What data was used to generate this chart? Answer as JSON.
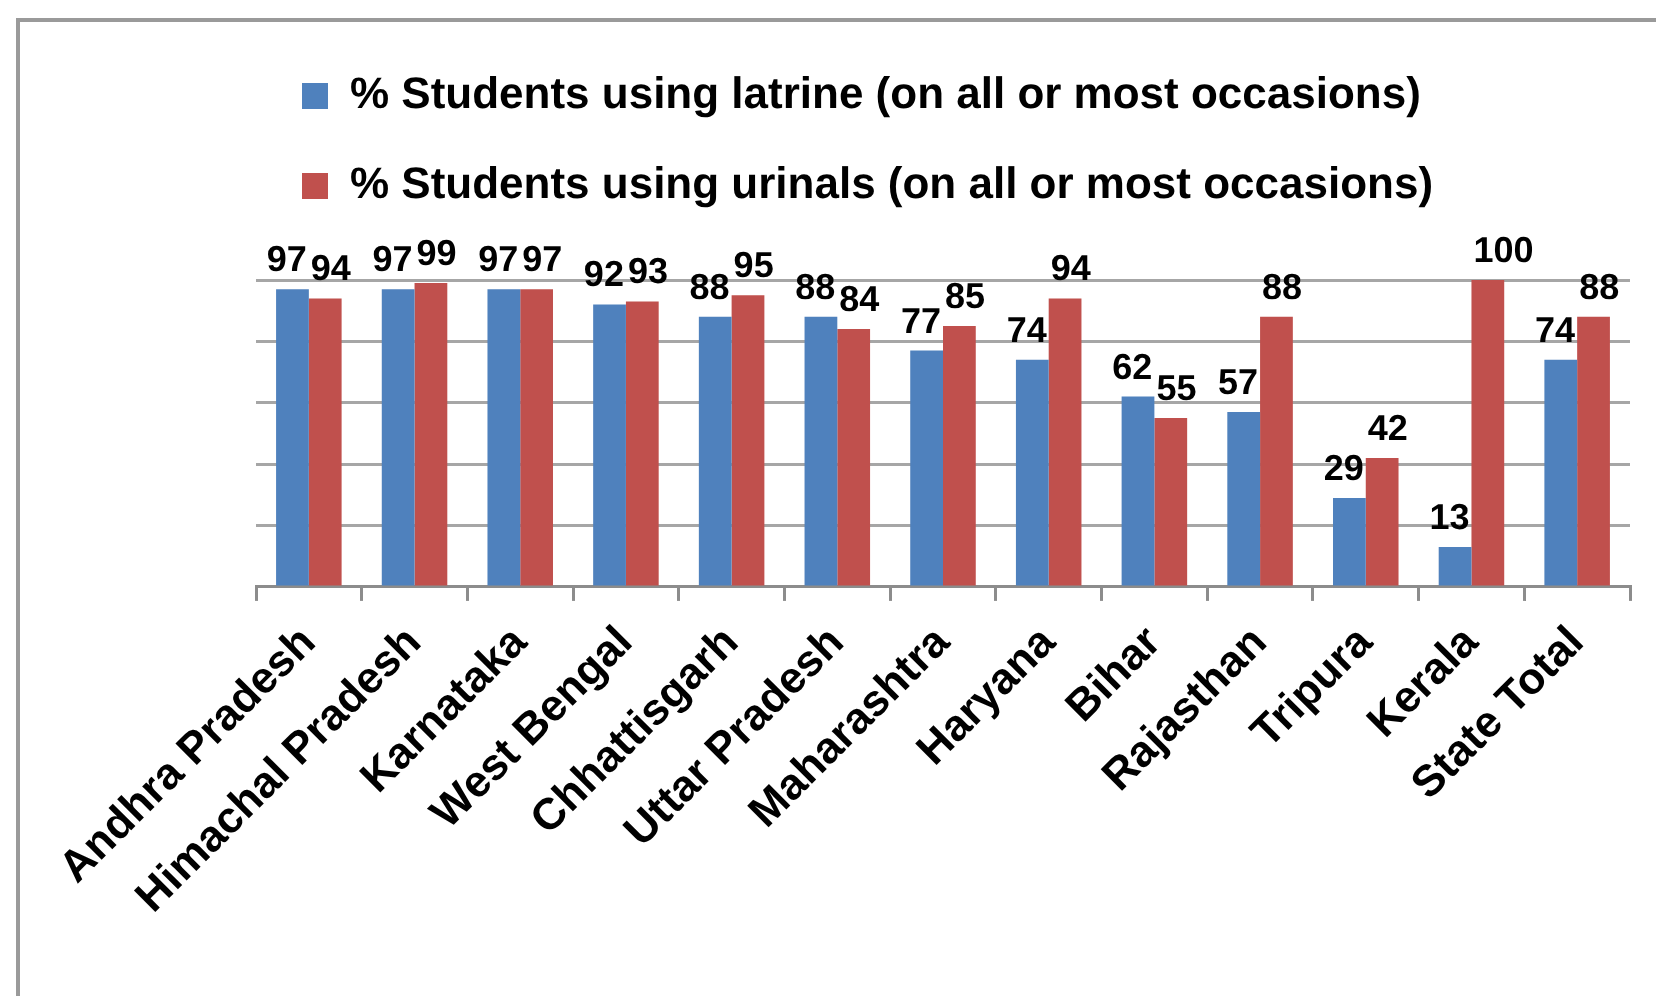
{
  "chart_data": {
    "type": "bar",
    "categories": [
      "Andhra Pradesh",
      "Himachal Pradesh",
      "Karnataka",
      "West Bengal",
      "Chhattisgarh",
      "Uttar Pradesh",
      "Maharashtra",
      "Haryana",
      "Bihar",
      "Rajasthan",
      "Tripura",
      "Kerala",
      "State Total"
    ],
    "series": [
      {
        "name": "% Students using latrine (on all or most occasions)",
        "color": "#4f81bd",
        "values": [
          97,
          97,
          97,
          92,
          88,
          88,
          77,
          74,
          62,
          57,
          29,
          13,
          74
        ]
      },
      {
        "name": "% Students using urinals (on all or most occasions)",
        "color": "#c0504d",
        "values": [
          94,
          99,
          97,
          93,
          95,
          84,
          85,
          94,
          55,
          88,
          42,
          100,
          88
        ]
      }
    ],
    "ylim": [
      0,
      100
    ],
    "yticks": [
      {
        "value": 0,
        "label": null
      },
      {
        "value": 20,
        "label": null
      },
      {
        "value": 40,
        "label": null
      },
      {
        "value": 60,
        "label": null
      },
      {
        "value": 80,
        "label": null
      },
      {
        "value": 100,
        "label": null
      }
    ],
    "grid": "y",
    "legend": "top",
    "tick_labels": "x",
    "data_labels": true
  }
}
